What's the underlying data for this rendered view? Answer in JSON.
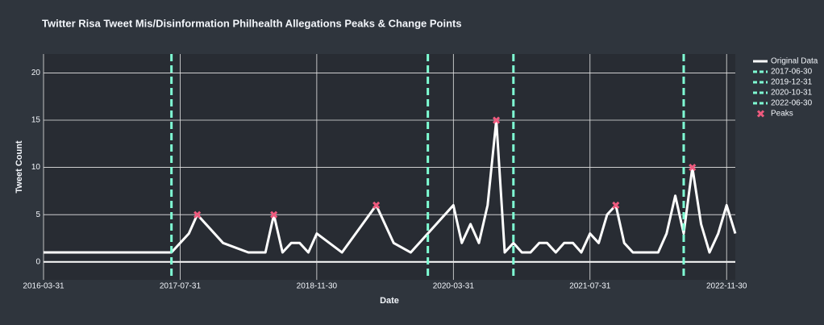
{
  "chart_data": {
    "type": "line",
    "title": "Twitter Risa Tweet Mis/Disinformation Philhealth Allegations Peaks & Change Points",
    "xlabel": "Date",
    "ylabel": "Tweet Count",
    "xlim": [
      "2016-03-31",
      "2022-12-31"
    ],
    "ylim": [
      -1.9,
      22
    ],
    "xticks": [
      "2016-03-31",
      "2017-07-31",
      "2018-11-30",
      "2020-03-31",
      "2021-07-31",
      "2022-11-30"
    ],
    "yticks": [
      0,
      5,
      10,
      15,
      20
    ],
    "grid": true,
    "series": [
      {
        "name": "Original Data",
        "color": "#ffffff",
        "x": [
          "2016-03-31",
          "2017-06-30",
          "2017-07-31",
          "2017-08-31",
          "2017-09-30",
          "2017-12-31",
          "2018-03-31",
          "2018-05-31",
          "2018-06-30",
          "2018-07-31",
          "2018-08-31",
          "2018-09-30",
          "2018-10-31",
          "2018-11-30",
          "2019-02-28",
          "2019-06-30",
          "2019-08-31",
          "2019-10-31",
          "2020-03-31",
          "2020-04-30",
          "2020-05-31",
          "2020-06-30",
          "2020-07-31",
          "2020-08-31",
          "2020-09-30",
          "2020-10-31",
          "2020-11-30",
          "2020-12-31",
          "2021-01-31",
          "2021-02-28",
          "2021-03-31",
          "2021-04-30",
          "2021-05-31",
          "2021-06-30",
          "2021-07-31",
          "2021-08-31",
          "2021-09-30",
          "2021-10-31",
          "2021-11-30",
          "2021-12-31",
          "2022-03-31",
          "2022-04-30",
          "2022-05-31",
          "2022-06-30",
          "2022-07-31",
          "2022-08-31",
          "2022-09-30",
          "2022-10-31",
          "2022-11-30",
          "2022-12-31"
        ],
        "values": [
          1,
          1,
          2,
          3,
          5,
          2,
          1,
          1,
          5,
          1,
          2,
          2,
          1,
          3,
          1,
          6,
          2,
          1,
          6,
          2,
          4,
          2,
          6,
          15,
          1,
          2,
          1,
          1,
          2,
          2,
          1,
          2,
          2,
          1,
          3,
          2,
          5,
          6,
          2,
          1,
          1,
          3,
          7,
          3,
          10,
          4,
          1,
          3,
          6,
          3
        ]
      }
    ],
    "change_points": [
      {
        "name": "2017-06-30",
        "color": "#7fffd4",
        "x": "2017-06-30"
      },
      {
        "name": "2019-12-31",
        "color": "#7fffd4",
        "x": "2019-12-31"
      },
      {
        "name": "2020-10-31",
        "color": "#7fffd4",
        "x": "2020-10-31"
      },
      {
        "name": "2022-06-30",
        "color": "#7fffd4",
        "x": "2022-06-30"
      }
    ],
    "peaks": {
      "name": "Peaks",
      "color": "#ef5a7e",
      "x": [
        "2017-09-30",
        "2018-06-30",
        "2019-06-30",
        "2020-08-31",
        "2021-10-31",
        "2022-07-31"
      ],
      "values": [
        5,
        5,
        6,
        15,
        6,
        10
      ]
    }
  }
}
